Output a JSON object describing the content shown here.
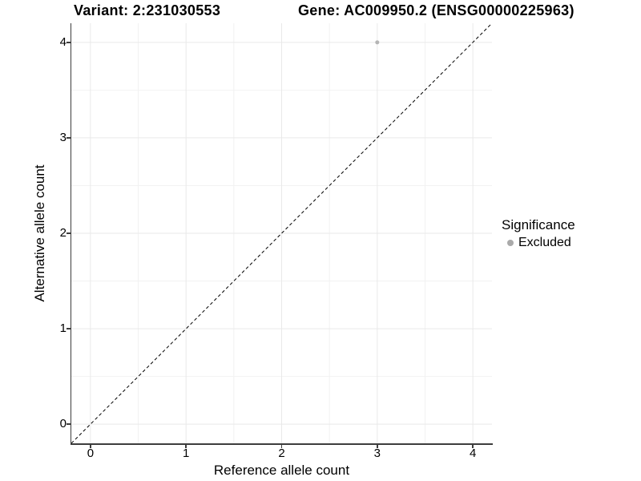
{
  "header": {
    "variant_title": "Variant: 2:231030553",
    "gene_title": "Gene: AC009950.2 (ENSG00000225963)"
  },
  "chart_data": {
    "type": "scatter",
    "titles": [
      "Variant: 2:231030553",
      "Gene: AC009950.2 (ENSG00000225963)"
    ],
    "xlabel": "Reference allele count",
    "ylabel": "Alternative allele count",
    "xlim": [
      -0.2,
      4.2
    ],
    "ylim": [
      -0.2,
      4.2
    ],
    "xticks": [
      0,
      1,
      2,
      3,
      4
    ],
    "yticks": [
      0,
      1,
      2,
      3,
      4
    ],
    "x_minor_ticks": [
      0.5,
      1.5,
      2.5,
      3.5
    ],
    "y_minor_ticks": [
      0.5,
      1.5,
      2.5,
      3.5
    ],
    "grid": true,
    "series": [
      {
        "name": "Excluded",
        "marker": "circle",
        "color": "#b5b5b5",
        "points": [
          {
            "x": 3,
            "y": 4
          }
        ]
      }
    ],
    "reference_line": {
      "type": "identity",
      "slope": 1,
      "intercept": 0,
      "linestyle": "dashed",
      "color": "#000000"
    },
    "legend": {
      "title": "Significance",
      "position": "right",
      "entries": [
        {
          "label": "Excluded",
          "color": "#aaaaaa"
        }
      ]
    }
  },
  "colors": {
    "background": "#ffffff",
    "grid_major": "#e9e9e9",
    "grid_minor": "#f2f2f2",
    "axis_line": "#3d3d3d",
    "text": "#000000",
    "point": "#b5b5b5"
  }
}
